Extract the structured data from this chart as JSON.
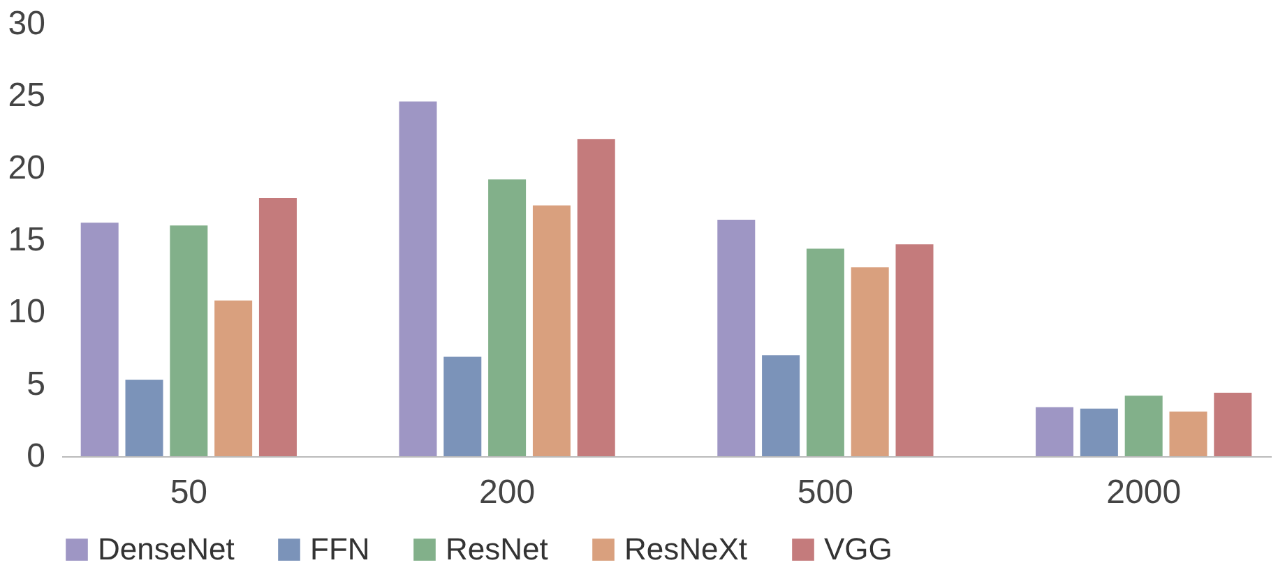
{
  "chart_data": {
    "type": "bar",
    "categories": [
      "50",
      "200",
      "500",
      "2000"
    ],
    "series": [
      {
        "name": "DenseNet",
        "color": "#9e96c4",
        "values": [
          16.2,
          24.6,
          16.4,
          3.4
        ]
      },
      {
        "name": "FFN",
        "color": "#7b93b9",
        "values": [
          5.3,
          6.9,
          7.0,
          3.3
        ]
      },
      {
        "name": "ResNet",
        "color": "#82b08a",
        "values": [
          16.0,
          19.2,
          14.4,
          4.2
        ]
      },
      {
        "name": "ResNeXt",
        "color": "#d9a07e",
        "values": [
          10.8,
          17.4,
          13.1,
          3.1
        ]
      },
      {
        "name": "VGG",
        "color": "#c47b7c",
        "values": [
          17.9,
          22.0,
          14.7,
          4.4
        ]
      }
    ],
    "ylim": [
      0,
      30
    ],
    "yticks": [
      0,
      5,
      10,
      15,
      20,
      25,
      30
    ],
    "grid": false,
    "legend": "bottom"
  }
}
